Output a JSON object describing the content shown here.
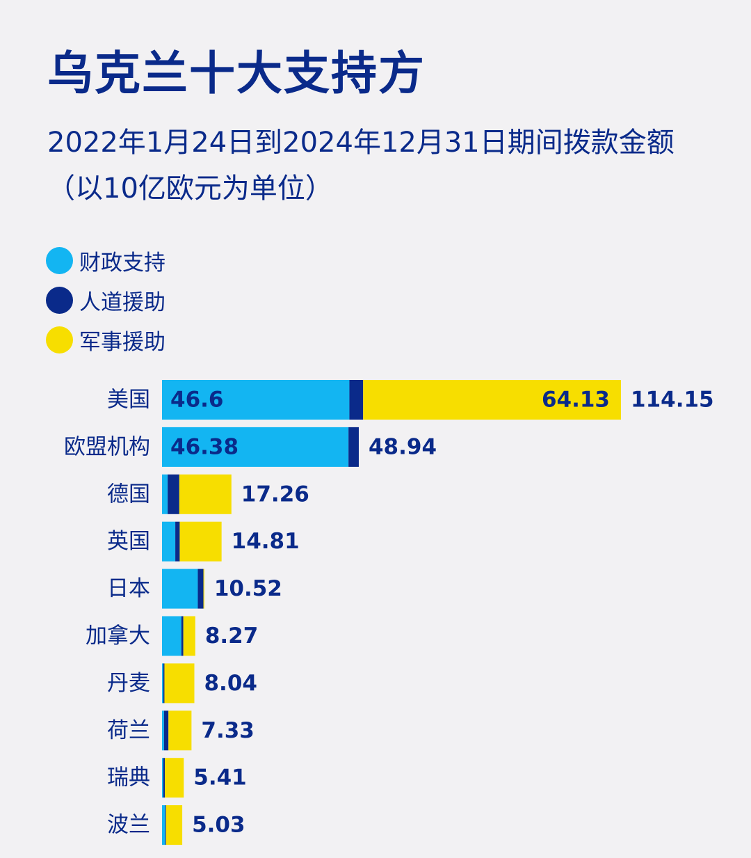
{
  "title": "乌克兰十大支持方",
  "subtitle": "2022年1月24日到2024年12月31日期间拨款金额（以10亿欧元为单位）",
  "colors": {
    "financial": "#13b5f2",
    "humanitarian": "#0a2a8a",
    "military": "#f7de00",
    "text": "#0a2a8a",
    "background": "#f2f1f3"
  },
  "chart_data": {
    "type": "bar",
    "orientation": "horizontal",
    "stacked": true,
    "title": "乌克兰十大支持方",
    "subtitle": "2022年1月24日到2024年12月31日期间拨款金额（以10亿欧元为单位）",
    "legend_position": "top-left",
    "grid": false,
    "categories": [
      "美国",
      "欧盟机构",
      "德国",
      "英国",
      "日本",
      "加拿大",
      "丹麦",
      "荷兰",
      "瑞典",
      "波兰"
    ],
    "series": [
      {
        "name": "财政支持",
        "color": "#13b5f2",
        "values": [
          46.6,
          46.38,
          1.4,
          3.3,
          8.9,
          4.8,
          0.3,
          0.5,
          0.3,
          0.8
        ]
      },
      {
        "name": "人道援助",
        "color": "#0a2a8a",
        "values": [
          3.42,
          2.56,
          2.9,
          1.1,
          1.4,
          0.5,
          0.3,
          1.1,
          0.4,
          0.2
        ]
      },
      {
        "name": "军事援助",
        "color": "#f7de00",
        "values": [
          64.13,
          0,
          12.96,
          10.41,
          0.22,
          2.97,
          7.44,
          5.73,
          4.71,
          4.03
        ]
      }
    ],
    "totals": [
      114.15,
      48.94,
      17.26,
      14.81,
      10.52,
      8.27,
      8.04,
      7.33,
      5.41,
      5.03
    ],
    "segment_labels": [
      {
        "category": "美国",
        "series": "财政支持",
        "text": "46.6"
      },
      {
        "category": "美国",
        "series": "军事援助",
        "text": "64.13"
      },
      {
        "category": "欧盟机构",
        "series": "财政支持",
        "text": "46.38"
      }
    ],
    "total_labels": [
      "114.15",
      "48.94",
      "17.26",
      "14.81",
      "10.52",
      "8.27",
      "8.04",
      "7.33",
      "5.41",
      "5.03"
    ],
    "xlim": [
      0,
      114.15
    ]
  }
}
